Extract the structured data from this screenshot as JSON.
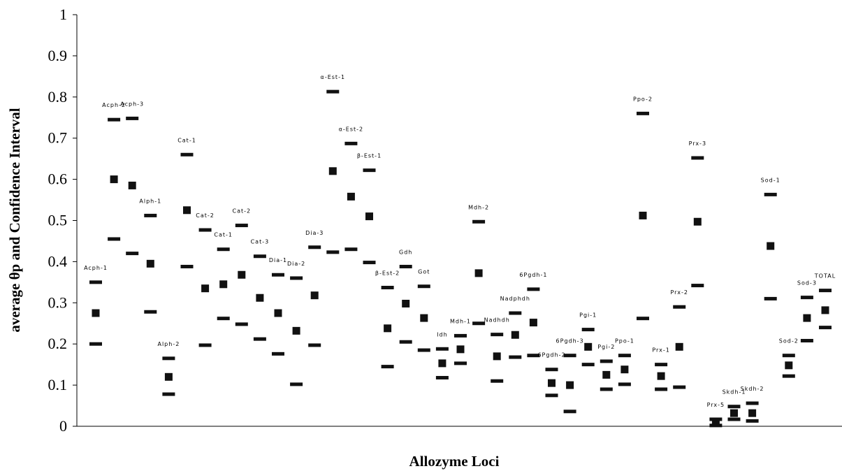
{
  "chart_data": {
    "type": "scatter",
    "title": "",
    "xlabel": "Allozyme Loci",
    "ylabel": "average θp and Confidence Interval",
    "ylim": [
      0,
      1
    ],
    "yticks": [
      "0",
      "0.1",
      "0.2",
      "0.3",
      "0.4",
      "0.5",
      "0.6",
      "0.7",
      "0.8",
      "0.9",
      "1"
    ],
    "grid": false,
    "legend": "none",
    "marker_color": "#111111",
    "loci": [
      {
        "name": "Acph-1",
        "mean": 0.275,
        "upper": 0.35,
        "lower": 0.2
      },
      {
        "name": "Acph-2",
        "mean": 0.6,
        "upper": 0.745,
        "lower": 0.455
      },
      {
        "name": "Acph-3",
        "mean": 0.585,
        "upper": 0.748,
        "lower": 0.42
      },
      {
        "name": "Alph-1",
        "mean": 0.395,
        "upper": 0.512,
        "lower": 0.278
      },
      {
        "name": "Alph-2",
        "mean": 0.12,
        "upper": 0.165,
        "lower": 0.078
      },
      {
        "name": "Cat-1",
        "mean": 0.525,
        "upper": 0.66,
        "lower": 0.388
      },
      {
        "name": "Cat-2",
        "mean": 0.335,
        "upper": 0.477,
        "lower": 0.197
      },
      {
        "name": "Cat-1",
        "mean": 0.345,
        "upper": 0.43,
        "lower": 0.262
      },
      {
        "name": "Cat-2",
        "mean": 0.368,
        "upper": 0.488,
        "lower": 0.248
      },
      {
        "name": "Cat-3",
        "mean": 0.312,
        "upper": 0.413,
        "lower": 0.212
      },
      {
        "name": "Dia-1",
        "mean": 0.275,
        "upper": 0.368,
        "lower": 0.176
      },
      {
        "name": "Dia-2",
        "mean": 0.232,
        "upper": 0.36,
        "lower": 0.102
      },
      {
        "name": "Dia-3",
        "mean": 0.318,
        "upper": 0.435,
        "lower": 0.197
      },
      {
        "name": "α-Est-1",
        "mean": 0.62,
        "upper": 0.813,
        "lower": 0.423
      },
      {
        "name": "α-Est-2",
        "mean": 0.558,
        "upper": 0.687,
        "lower": 0.43
      },
      {
        "name": "β-Est-1",
        "mean": 0.51,
        "upper": 0.622,
        "lower": 0.398
      },
      {
        "name": "β-Est-2",
        "mean": 0.238,
        "upper": 0.337,
        "lower": 0.145
      },
      {
        "name": "Gdh",
        "mean": 0.298,
        "upper": 0.388,
        "lower": 0.205
      },
      {
        "name": "Got",
        "mean": 0.263,
        "upper": 0.34,
        "lower": 0.185
      },
      {
        "name": "Idh",
        "mean": 0.153,
        "upper": 0.188,
        "lower": 0.118
      },
      {
        "name": "Mdh-1",
        "mean": 0.187,
        "upper": 0.22,
        "lower": 0.153
      },
      {
        "name": "Mdh-2",
        "mean": 0.372,
        "upper": 0.497,
        "lower": 0.25
      },
      {
        "name": "Nadhdh",
        "mean": 0.17,
        "upper": 0.223,
        "lower": 0.11
      },
      {
        "name": "Nadphdh",
        "mean": 0.222,
        "upper": 0.275,
        "lower": 0.168
      },
      {
        "name": "6Pgdh-1",
        "mean": 0.252,
        "upper": 0.333,
        "lower": 0.172
      },
      {
        "name": "6Pgdh-2",
        "mean": 0.105,
        "upper": 0.138,
        "lower": 0.075
      },
      {
        "name": "6Pgdh-3",
        "mean": 0.1,
        "upper": 0.172,
        "lower": 0.036
      },
      {
        "name": "Pgi-1",
        "mean": 0.193,
        "upper": 0.235,
        "lower": 0.15
      },
      {
        "name": "Pgi-2",
        "mean": 0.125,
        "upper": 0.158,
        "lower": 0.09
      },
      {
        "name": "Ppo-1",
        "mean": 0.138,
        "upper": 0.172,
        "lower": 0.102
      },
      {
        "name": "Ppo-2",
        "mean": 0.512,
        "upper": 0.76,
        "lower": 0.262
      },
      {
        "name": "Prx-1",
        "mean": 0.122,
        "upper": 0.15,
        "lower": 0.09
      },
      {
        "name": "Prx-2",
        "mean": 0.193,
        "upper": 0.29,
        "lower": 0.095
      },
      {
        "name": "Prx-3",
        "mean": 0.497,
        "upper": 0.652,
        "lower": 0.342
      },
      {
        "name": "Prx-5",
        "mean": 0.008,
        "upper": 0.017,
        "lower": 0.002
      },
      {
        "name": "Skdh-1",
        "mean": 0.032,
        "upper": 0.048,
        "lower": 0.017
      },
      {
        "name": "Skdh-2",
        "mean": 0.032,
        "upper": 0.056,
        "lower": 0.013
      },
      {
        "name": "Sod-1",
        "mean": 0.438,
        "upper": 0.563,
        "lower": 0.31
      },
      {
        "name": "Sod-2",
        "mean": 0.148,
        "upper": 0.172,
        "lower": 0.122
      },
      {
        "name": "Sod-3",
        "mean": 0.263,
        "upper": 0.313,
        "lower": 0.208
      },
      {
        "name": "TOTAL",
        "mean": 0.282,
        "upper": 0.33,
        "lower": 0.24
      }
    ]
  }
}
